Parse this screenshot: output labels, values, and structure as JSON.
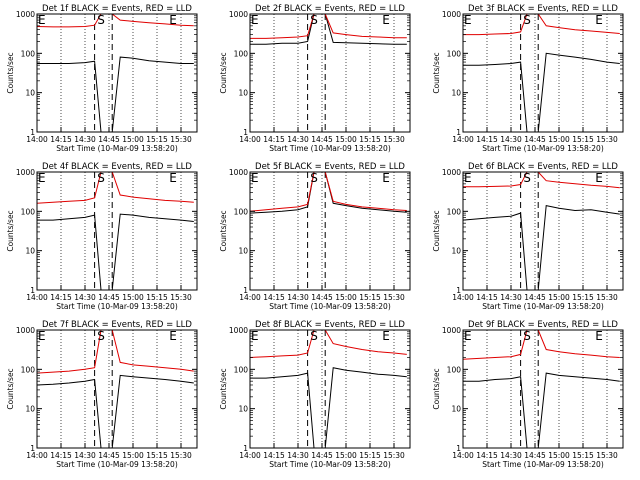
{
  "panel_meta": {
    "x_tick_labels": [
      "14:00",
      "14:15",
      "14:30",
      "14:45",
      "15:00",
      "15:15",
      "15:30"
    ],
    "y_tick_labels": [
      "1",
      "10",
      "100",
      "1000"
    ],
    "xlabel": "Start Time (10-Mar-09 13:58:20)",
    "ylabel": "Counts/sec",
    "markers": {
      "E": "E",
      "S": "S"
    }
  },
  "series_colors": {
    "events": "#000000",
    "lld": "#e00000"
  },
  "chart_data": [
    {
      "type": "line",
      "title": "Det 1f BLACK = Events, RED = LLD",
      "x_unit": "minutes after 14:00",
      "xlim": [
        0,
        100
      ],
      "ylim": [
        1,
        1000
      ],
      "y_scale": "log",
      "series": [
        {
          "key": "events",
          "x": [
            0,
            10,
            20,
            30,
            36,
            40,
            47,
            52,
            60,
            70,
            80,
            90,
            98
          ],
          "values": [
            55,
            55,
            55,
            58,
            63,
            1,
            1,
            80,
            75,
            65,
            60,
            55,
            55
          ]
        },
        {
          "key": "lld",
          "x": [
            0,
            10,
            20,
            30,
            36,
            40,
            47,
            52,
            60,
            70,
            80,
            90,
            98
          ],
          "values": [
            480,
            470,
            470,
            480,
            520,
            1000,
            1000,
            700,
            650,
            600,
            560,
            520,
            500
          ]
        }
      ]
    },
    {
      "type": "line",
      "title": "Det 2f BLACK = Events, RED = LLD",
      "x_unit": "minutes after 14:00",
      "xlim": [
        0,
        100
      ],
      "ylim": [
        1,
        1000
      ],
      "y_scale": "log",
      "series": [
        {
          "key": "events",
          "x": [
            0,
            10,
            20,
            30,
            36,
            40,
            47,
            52,
            60,
            70,
            80,
            90,
            98
          ],
          "values": [
            170,
            170,
            180,
            180,
            200,
            1000,
            1000,
            190,
            185,
            180,
            175,
            170,
            170
          ]
        },
        {
          "key": "lld",
          "x": [
            0,
            10,
            20,
            30,
            36,
            40,
            47,
            52,
            60,
            70,
            80,
            90,
            98
          ],
          "values": [
            240,
            240,
            250,
            260,
            280,
            1000,
            1000,
            330,
            300,
            270,
            260,
            250,
            250
          ]
        }
      ]
    },
    {
      "type": "line",
      "title": "Det 3f BLACK = Events, RED = LLD",
      "x_unit": "minutes after 14:00",
      "xlim": [
        0,
        100
      ],
      "ylim": [
        1,
        1000
      ],
      "y_scale": "log",
      "series": [
        {
          "key": "events",
          "x": [
            0,
            10,
            20,
            30,
            36,
            40,
            47,
            52,
            60,
            70,
            80,
            90,
            98
          ],
          "values": [
            50,
            50,
            52,
            55,
            60,
            1,
            1,
            100,
            90,
            80,
            70,
            60,
            55
          ]
        },
        {
          "key": "lld",
          "x": [
            0,
            10,
            20,
            30,
            36,
            40,
            47,
            52,
            60,
            70,
            80,
            90,
            98
          ],
          "values": [
            300,
            300,
            310,
            320,
            350,
            1000,
            1000,
            500,
            450,
            400,
            370,
            340,
            320
          ]
        }
      ]
    },
    {
      "type": "line",
      "title": "Det 4f BLACK = Events, RED = LLD",
      "x_unit": "minutes after 14:00",
      "xlim": [
        0,
        100
      ],
      "ylim": [
        1,
        1000
      ],
      "y_scale": "log",
      "series": [
        {
          "key": "events",
          "x": [
            0,
            10,
            20,
            30,
            36,
            40,
            47,
            52,
            60,
            70,
            80,
            90,
            98
          ],
          "values": [
            60,
            60,
            65,
            70,
            80,
            1,
            1,
            85,
            80,
            70,
            65,
            60,
            55
          ]
        },
        {
          "key": "lld",
          "x": [
            0,
            10,
            20,
            30,
            36,
            40,
            47,
            52,
            60,
            70,
            80,
            90,
            98
          ],
          "values": [
            160,
            170,
            180,
            190,
            220,
            1000,
            1000,
            260,
            230,
            210,
            190,
            180,
            170
          ]
        }
      ]
    },
    {
      "type": "line",
      "title": "Det 5f BLACK = Events, RED = LLD",
      "x_unit": "minutes after 14:00",
      "xlim": [
        0,
        100
      ],
      "ylim": [
        1,
        1000
      ],
      "y_scale": "log",
      "series": [
        {
          "key": "events",
          "x": [
            0,
            10,
            20,
            30,
            36,
            40,
            47,
            52,
            60,
            70,
            80,
            90,
            98
          ],
          "values": [
            90,
            95,
            100,
            110,
            130,
            1000,
            1000,
            160,
            140,
            120,
            110,
            100,
            95
          ]
        },
        {
          "key": "lld",
          "x": [
            0,
            10,
            20,
            30,
            36,
            40,
            47,
            52,
            60,
            70,
            80,
            90,
            98
          ],
          "values": [
            100,
            110,
            120,
            130,
            150,
            1000,
            1000,
            180,
            150,
            130,
            120,
            110,
            105
          ]
        }
      ]
    },
    {
      "type": "line",
      "title": "Det 6f BLACK = Events, RED = LLD",
      "x_unit": "minutes after 14:00",
      "xlim": [
        0,
        100
      ],
      "ylim": [
        1,
        1000
      ],
      "y_scale": "log",
      "series": [
        {
          "key": "events",
          "x": [
            0,
            10,
            20,
            30,
            36,
            40,
            47,
            52,
            60,
            70,
            80,
            90,
            98
          ],
          "values": [
            60,
            65,
            70,
            75,
            90,
            1,
            1,
            140,
            120,
            105,
            110,
            95,
            85
          ]
        },
        {
          "key": "lld",
          "x": [
            0,
            10,
            20,
            30,
            36,
            40,
            47,
            52,
            60,
            70,
            80,
            90,
            98
          ],
          "values": [
            420,
            420,
            430,
            440,
            480,
            1000,
            1000,
            600,
            550,
            500,
            460,
            430,
            400
          ]
        }
      ]
    },
    {
      "type": "line",
      "title": "Det 7f BLACK = Events, RED = LLD",
      "x_unit": "minutes after 14:00",
      "xlim": [
        0,
        100
      ],
      "ylim": [
        1,
        1000
      ],
      "y_scale": "log",
      "series": [
        {
          "key": "events",
          "x": [
            0,
            10,
            20,
            30,
            36,
            40,
            47,
            52,
            60,
            70,
            80,
            90,
            98
          ],
          "values": [
            40,
            42,
            45,
            50,
            55,
            1,
            1,
            70,
            65,
            60,
            55,
            50,
            45
          ]
        },
        {
          "key": "lld",
          "x": [
            0,
            10,
            20,
            30,
            36,
            40,
            47,
            52,
            60,
            70,
            80,
            90,
            98
          ],
          "values": [
            80,
            85,
            90,
            100,
            110,
            1000,
            1000,
            150,
            130,
            120,
            110,
            100,
            90
          ]
        }
      ]
    },
    {
      "type": "line",
      "title": "Det 8f BLACK = Events, RED = LLD",
      "x_unit": "minutes after 14:00",
      "xlim": [
        0,
        100
      ],
      "ylim": [
        1,
        1000
      ],
      "y_scale": "log",
      "series": [
        {
          "key": "events",
          "x": [
            0,
            10,
            20,
            30,
            36,
            40,
            47,
            52,
            60,
            70,
            80,
            90,
            98
          ],
          "values": [
            60,
            60,
            65,
            70,
            80,
            1,
            1,
            110,
            95,
            85,
            75,
            70,
            65
          ]
        },
        {
          "key": "lld",
          "x": [
            0,
            10,
            20,
            30,
            36,
            40,
            47,
            52,
            60,
            70,
            80,
            90,
            98
          ],
          "values": [
            200,
            210,
            220,
            230,
            260,
            1000,
            1000,
            450,
            380,
            320,
            280,
            260,
            240
          ]
        }
      ]
    },
    {
      "type": "line",
      "title": "Det 9f BLACK = Events, RED = LLD",
      "x_unit": "minutes after 14:00",
      "xlim": [
        0,
        100
      ],
      "ylim": [
        1,
        1000
      ],
      "y_scale": "log",
      "series": [
        {
          "key": "events",
          "x": [
            0,
            10,
            20,
            30,
            36,
            40,
            47,
            52,
            60,
            70,
            80,
            90,
            98
          ],
          "values": [
            50,
            50,
            55,
            58,
            65,
            1,
            1,
            80,
            70,
            65,
            60,
            55,
            50
          ]
        },
        {
          "key": "lld",
          "x": [
            0,
            10,
            20,
            30,
            36,
            40,
            47,
            52,
            60,
            70,
            80,
            90,
            98
          ],
          "values": [
            180,
            190,
            200,
            210,
            240,
            1000,
            1000,
            320,
            280,
            250,
            230,
            210,
            200
          ]
        }
      ]
    }
  ]
}
